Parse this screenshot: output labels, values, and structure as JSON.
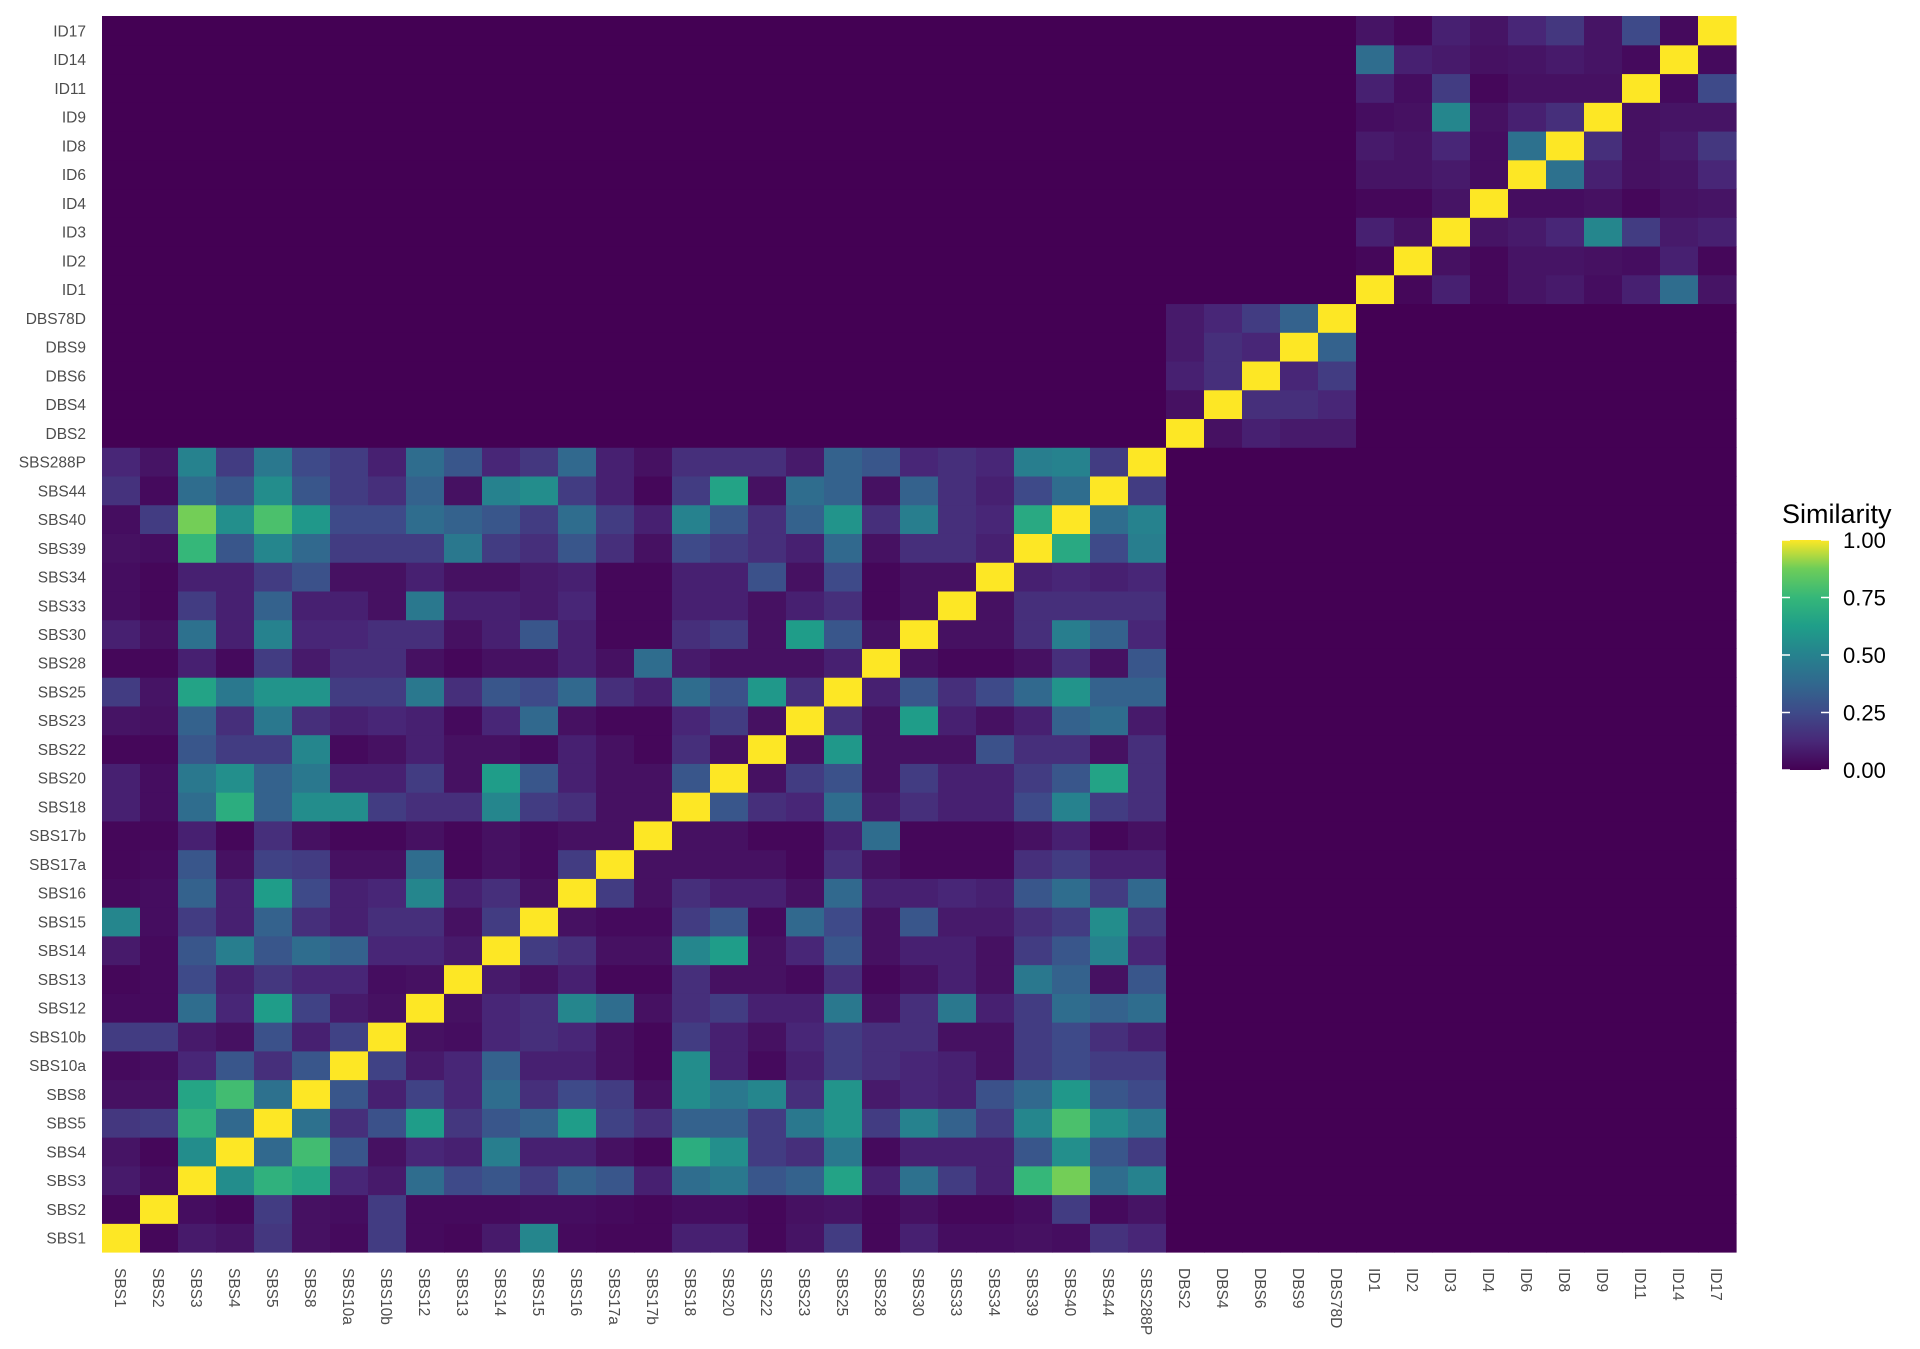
{
  "chart_data": {
    "type": "heatmap",
    "title": "",
    "xlabel": "",
    "ylabel": "",
    "x_categories": [
      "SBS1",
      "SBS2",
      "SBS3",
      "SBS4",
      "SBS5",
      "SBS8",
      "SBS10a",
      "SBS10b",
      "SBS12",
      "SBS13",
      "SBS14",
      "SBS15",
      "SBS16",
      "SBS17a",
      "SBS17b",
      "SBS18",
      "SBS20",
      "SBS22",
      "SBS23",
      "SBS25",
      "SBS28",
      "SBS30",
      "SBS33",
      "SBS34",
      "SBS39",
      "SBS40",
      "SBS44",
      "SBS288P",
      "DBS2",
      "DBS4",
      "DBS6",
      "DBS9",
      "DBS78D",
      "ID1",
      "ID2",
      "ID3",
      "ID4",
      "ID6",
      "ID8",
      "ID9",
      "ID11",
      "ID14",
      "ID17"
    ],
    "y_categories": [
      "SBS1",
      "SBS2",
      "SBS3",
      "SBS4",
      "SBS5",
      "SBS8",
      "SBS10a",
      "SBS10b",
      "SBS12",
      "SBS13",
      "SBS14",
      "SBS15",
      "SBS16",
      "SBS17a",
      "SBS17b",
      "SBS18",
      "SBS20",
      "SBS22",
      "SBS23",
      "SBS25",
      "SBS28",
      "SBS30",
      "SBS33",
      "SBS34",
      "SBS39",
      "SBS40",
      "SBS44",
      "SBS288P",
      "DBS2",
      "DBS4",
      "DBS6",
      "DBS9",
      "DBS78D",
      "ID1",
      "ID2",
      "ID3",
      "ID4",
      "ID6",
      "ID8",
      "ID9",
      "ID11",
      "ID14",
      "ID17"
    ],
    "values_note_groups": {
      "SBS": 28,
      "DBS": 5,
      "ID": 10
    },
    "values": [
      [
        1,
        0.02,
        0.08,
        0.06,
        0.18,
        0.05,
        0.03,
        0.2,
        0.03,
        0.02,
        0.08,
        0.52,
        0.03,
        0.02,
        0.02,
        0.1,
        0.1,
        0.02,
        0.06,
        0.2,
        0.02,
        0.1,
        0.04,
        0.04,
        0.05,
        0.04,
        0.16,
        0.12
      ],
      [
        0.02,
        1,
        0.04,
        0.02,
        0.2,
        0.05,
        0.04,
        0.2,
        0.03,
        0.03,
        0.03,
        0.04,
        0.04,
        0.03,
        0.02,
        0.04,
        0.04,
        0.02,
        0.05,
        0.06,
        0.02,
        0.05,
        0.02,
        0.02,
        0.04,
        0.2,
        0.03,
        0.06
      ],
      [
        0.08,
        0.04,
        1,
        0.55,
        0.72,
        0.66,
        0.12,
        0.08,
        0.4,
        0.25,
        0.3,
        0.2,
        0.35,
        0.3,
        0.1,
        0.4,
        0.45,
        0.3,
        0.35,
        0.65,
        0.1,
        0.42,
        0.2,
        0.1,
        0.75,
        0.88,
        0.4,
        0.5
      ],
      [
        0.06,
        0.02,
        0.55,
        1,
        0.38,
        0.78,
        0.3,
        0.05,
        0.12,
        0.1,
        0.48,
        0.1,
        0.1,
        0.05,
        0.02,
        0.7,
        0.56,
        0.2,
        0.15,
        0.45,
        0.03,
        0.1,
        0.1,
        0.1,
        0.3,
        0.56,
        0.3,
        0.2
      ],
      [
        0.18,
        0.2,
        0.72,
        0.38,
        1,
        0.42,
        0.15,
        0.28,
        0.62,
        0.18,
        0.3,
        0.35,
        0.62,
        0.22,
        0.15,
        0.35,
        0.35,
        0.2,
        0.45,
        0.58,
        0.2,
        0.5,
        0.35,
        0.2,
        0.52,
        0.8,
        0.55,
        0.45
      ],
      [
        0.05,
        0.05,
        0.66,
        0.78,
        0.42,
        1,
        0.3,
        0.1,
        0.22,
        0.12,
        0.4,
        0.15,
        0.25,
        0.2,
        0.05,
        0.55,
        0.45,
        0.52,
        0.15,
        0.58,
        0.08,
        0.12,
        0.1,
        0.28,
        0.38,
        0.6,
        0.3,
        0.25
      ],
      [
        0.03,
        0.04,
        0.12,
        0.3,
        0.15,
        0.3,
        1,
        0.22,
        0.08,
        0.12,
        0.35,
        0.1,
        0.1,
        0.05,
        0.02,
        0.55,
        0.1,
        0.03,
        0.1,
        0.2,
        0.15,
        0.12,
        0.1,
        0.05,
        0.2,
        0.25,
        0.2,
        0.2
      ],
      [
        0.2,
        0.2,
        0.08,
        0.05,
        0.28,
        0.1,
        0.22,
        1,
        0.05,
        0.04,
        0.12,
        0.15,
        0.12,
        0.05,
        0.02,
        0.2,
        0.1,
        0.05,
        0.12,
        0.2,
        0.15,
        0.15,
        0.05,
        0.05,
        0.2,
        0.25,
        0.15,
        0.1
      ],
      [
        0.03,
        0.03,
        0.4,
        0.12,
        0.62,
        0.22,
        0.08,
        0.05,
        1,
        0.05,
        0.12,
        0.15,
        0.52,
        0.4,
        0.05,
        0.15,
        0.2,
        0.1,
        0.1,
        0.45,
        0.05,
        0.15,
        0.45,
        0.1,
        0.2,
        0.4,
        0.35,
        0.4
      ],
      [
        0.02,
        0.03,
        0.25,
        0.1,
        0.18,
        0.12,
        0.12,
        0.04,
        0.05,
        1,
        0.08,
        0.05,
        0.1,
        0.02,
        0.02,
        0.15,
        0.05,
        0.05,
        0.03,
        0.15,
        0.02,
        0.05,
        0.1,
        0.05,
        0.45,
        0.35,
        0.05,
        0.3
      ],
      [
        0.08,
        0.03,
        0.3,
        0.48,
        0.3,
        0.4,
        0.35,
        0.12,
        0.12,
        0.08,
        1,
        0.2,
        0.15,
        0.05,
        0.05,
        0.52,
        0.62,
        0.05,
        0.12,
        0.3,
        0.05,
        0.1,
        0.1,
        0.05,
        0.2,
        0.3,
        0.5,
        0.12
      ],
      [
        0.52,
        0.04,
        0.2,
        0.1,
        0.35,
        0.15,
        0.1,
        0.15,
        0.15,
        0.05,
        0.2,
        1,
        0.05,
        0.03,
        0.03,
        0.2,
        0.3,
        0.03,
        0.38,
        0.25,
        0.05,
        0.3,
        0.08,
        0.08,
        0.15,
        0.2,
        0.55,
        0.18
      ],
      [
        0.03,
        0.04,
        0.35,
        0.1,
        0.62,
        0.25,
        0.1,
        0.12,
        0.52,
        0.1,
        0.15,
        0.05,
        1,
        0.2,
        0.05,
        0.15,
        0.1,
        0.1,
        0.05,
        0.38,
        0.1,
        0.1,
        0.12,
        0.1,
        0.3,
        0.4,
        0.2,
        0.38
      ],
      [
        0.02,
        0.03,
        0.3,
        0.05,
        0.22,
        0.2,
        0.05,
        0.05,
        0.4,
        0.02,
        0.05,
        0.03,
        0.2,
        1,
        0.05,
        0.05,
        0.05,
        0.05,
        0.02,
        0.15,
        0.05,
        0.02,
        0.02,
        0.02,
        0.15,
        0.2,
        0.1,
        0.1
      ],
      [
        0.02,
        0.02,
        0.1,
        0.02,
        0.15,
        0.05,
        0.02,
        0.02,
        0.05,
        0.02,
        0.05,
        0.03,
        0.05,
        0.05,
        1,
        0.05,
        0.05,
        0.02,
        0.02,
        0.1,
        0.4,
        0.02,
        0.02,
        0.02,
        0.05,
        0.1,
        0.02,
        0.05
      ],
      [
        0.1,
        0.04,
        0.4,
        0.7,
        0.35,
        0.55,
        0.55,
        0.2,
        0.15,
        0.15,
        0.52,
        0.2,
        0.15,
        0.05,
        0.05,
        1,
        0.3,
        0.15,
        0.12,
        0.4,
        0.08,
        0.15,
        0.1,
        0.1,
        0.25,
        0.5,
        0.2,
        0.15
      ],
      [
        0.1,
        0.04,
        0.45,
        0.56,
        0.35,
        0.45,
        0.1,
        0.1,
        0.2,
        0.05,
        0.62,
        0.3,
        0.1,
        0.05,
        0.05,
        0.3,
        1,
        0.05,
        0.2,
        0.28,
        0.05,
        0.2,
        0.1,
        0.1,
        0.2,
        0.3,
        0.65,
        0.15
      ],
      [
        0.02,
        0.02,
        0.3,
        0.2,
        0.2,
        0.52,
        0.03,
        0.05,
        0.1,
        0.05,
        0.05,
        0.03,
        0.1,
        0.05,
        0.02,
        0.15,
        0.05,
        1,
        0.05,
        0.6,
        0.05,
        0.05,
        0.05,
        0.28,
        0.15,
        0.15,
        0.05,
        0.15
      ],
      [
        0.06,
        0.05,
        0.35,
        0.15,
        0.45,
        0.15,
        0.1,
        0.12,
        0.1,
        0.03,
        0.12,
        0.38,
        0.05,
        0.02,
        0.02,
        0.12,
        0.2,
        0.05,
        1,
        0.15,
        0.05,
        0.62,
        0.1,
        0.05,
        0.1,
        0.35,
        0.4,
        0.08
      ],
      [
        0.2,
        0.06,
        0.65,
        0.45,
        0.58,
        0.58,
        0.2,
        0.2,
        0.45,
        0.15,
        0.3,
        0.25,
        0.38,
        0.15,
        0.1,
        0.4,
        0.28,
        0.6,
        0.15,
        1,
        0.1,
        0.3,
        0.15,
        0.25,
        0.38,
        0.58,
        0.35,
        0.35
      ],
      [
        0.02,
        0.02,
        0.1,
        0.03,
        0.2,
        0.08,
        0.15,
        0.15,
        0.05,
        0.02,
        0.05,
        0.05,
        0.1,
        0.05,
        0.4,
        0.08,
        0.05,
        0.05,
        0.05,
        0.1,
        1,
        0.05,
        0.02,
        0.02,
        0.05,
        0.15,
        0.05,
        0.3
      ],
      [
        0.1,
        0.05,
        0.42,
        0.1,
        0.5,
        0.12,
        0.12,
        0.15,
        0.15,
        0.05,
        0.1,
        0.3,
        0.1,
        0.02,
        0.02,
        0.15,
        0.2,
        0.05,
        0.62,
        0.3,
        0.05,
        1,
        0.05,
        0.05,
        0.15,
        0.48,
        0.35,
        0.12
      ],
      [
        0.04,
        0.02,
        0.2,
        0.1,
        0.35,
        0.1,
        0.1,
        0.05,
        0.45,
        0.1,
        0.1,
        0.08,
        0.12,
        0.02,
        0.02,
        0.1,
        0.1,
        0.05,
        0.1,
        0.15,
        0.02,
        0.05,
        1,
        0.05,
        0.15,
        0.15,
        0.15,
        0.15
      ],
      [
        0.04,
        0.02,
        0.1,
        0.1,
        0.2,
        0.28,
        0.05,
        0.05,
        0.1,
        0.05,
        0.05,
        0.08,
        0.1,
        0.02,
        0.02,
        0.1,
        0.1,
        0.28,
        0.05,
        0.25,
        0.02,
        0.05,
        0.05,
        1,
        0.1,
        0.12,
        0.1,
        0.12
      ],
      [
        0.05,
        0.04,
        0.75,
        0.3,
        0.52,
        0.38,
        0.2,
        0.2,
        0.2,
        0.45,
        0.2,
        0.15,
        0.3,
        0.15,
        0.05,
        0.25,
        0.2,
        0.15,
        0.1,
        0.38,
        0.05,
        0.15,
        0.15,
        0.1,
        1,
        0.68,
        0.25,
        0.48
      ],
      [
        0.04,
        0.2,
        0.88,
        0.56,
        0.8,
        0.6,
        0.25,
        0.25,
        0.4,
        0.35,
        0.3,
        0.2,
        0.4,
        0.2,
        0.1,
        0.5,
        0.3,
        0.15,
        0.35,
        0.58,
        0.15,
        0.48,
        0.15,
        0.12,
        0.68,
        1,
        0.4,
        0.5
      ],
      [
        0.16,
        0.03,
        0.4,
        0.3,
        0.55,
        0.3,
        0.2,
        0.15,
        0.35,
        0.05,
        0.5,
        0.55,
        0.2,
        0.1,
        0.02,
        0.2,
        0.65,
        0.05,
        0.4,
        0.35,
        0.05,
        0.35,
        0.15,
        0.1,
        0.25,
        0.4,
        1,
        0.2
      ],
      [
        0.12,
        0.06,
        0.5,
        0.2,
        0.45,
        0.25,
        0.2,
        0.1,
        0.4,
        0.3,
        0.12,
        0.18,
        0.38,
        0.1,
        0.05,
        0.15,
        0.15,
        0.15,
        0.08,
        0.35,
        0.3,
        0.12,
        0.15,
        0.12,
        0.48,
        0.5,
        0.2,
        1
      ]
    ],
    "dbs_values": [
      [
        1,
        0.05,
        0.1,
        0.08,
        0.08
      ],
      [
        0.05,
        1,
        0.15,
        0.15,
        0.12
      ],
      [
        0.1,
        0.15,
        1,
        0.12,
        0.2
      ],
      [
        0.08,
        0.15,
        0.12,
        1,
        0.35
      ],
      [
        0.08,
        0.12,
        0.2,
        0.35,
        1
      ]
    ],
    "id_values": [
      [
        1,
        0.02,
        0.1,
        0.02,
        0.06,
        0.08,
        0.04,
        0.1,
        0.4,
        0.06
      ],
      [
        0.02,
        1,
        0.05,
        0.02,
        0.06,
        0.06,
        0.05,
        0.04,
        0.1,
        0.02
      ],
      [
        0.1,
        0.05,
        1,
        0.06,
        0.08,
        0.12,
        0.52,
        0.2,
        0.08,
        0.1
      ],
      [
        0.02,
        0.02,
        0.06,
        1,
        0.04,
        0.04,
        0.05,
        0.02,
        0.05,
        0.06
      ],
      [
        0.06,
        0.06,
        0.08,
        0.04,
        1,
        0.42,
        0.1,
        0.05,
        0.06,
        0.12
      ],
      [
        0.08,
        0.06,
        0.12,
        0.04,
        0.42,
        1,
        0.15,
        0.05,
        0.08,
        0.18
      ],
      [
        0.04,
        0.05,
        0.52,
        0.05,
        0.1,
        0.15,
        1,
        0.05,
        0.06,
        0.06
      ],
      [
        0.1,
        0.04,
        0.2,
        0.02,
        0.05,
        0.05,
        0.05,
        1,
        0.03,
        0.25
      ],
      [
        0.4,
        0.1,
        0.08,
        0.05,
        0.06,
        0.08,
        0.06,
        0.03,
        1,
        0.03
      ],
      [
        0.06,
        0.02,
        0.1,
        0.06,
        0.12,
        0.18,
        0.06,
        0.25,
        0.03,
        1
      ]
    ],
    "color_scale": "viridis",
    "legend": {
      "title": "Similarity",
      "ticks": [
        "1.00",
        "0.75",
        "0.50",
        "0.25",
        "0.00"
      ],
      "range": [
        0,
        1
      ],
      "placement": "right"
    },
    "colors": {
      "low": "#440154",
      "high": "#FDE725"
    }
  }
}
